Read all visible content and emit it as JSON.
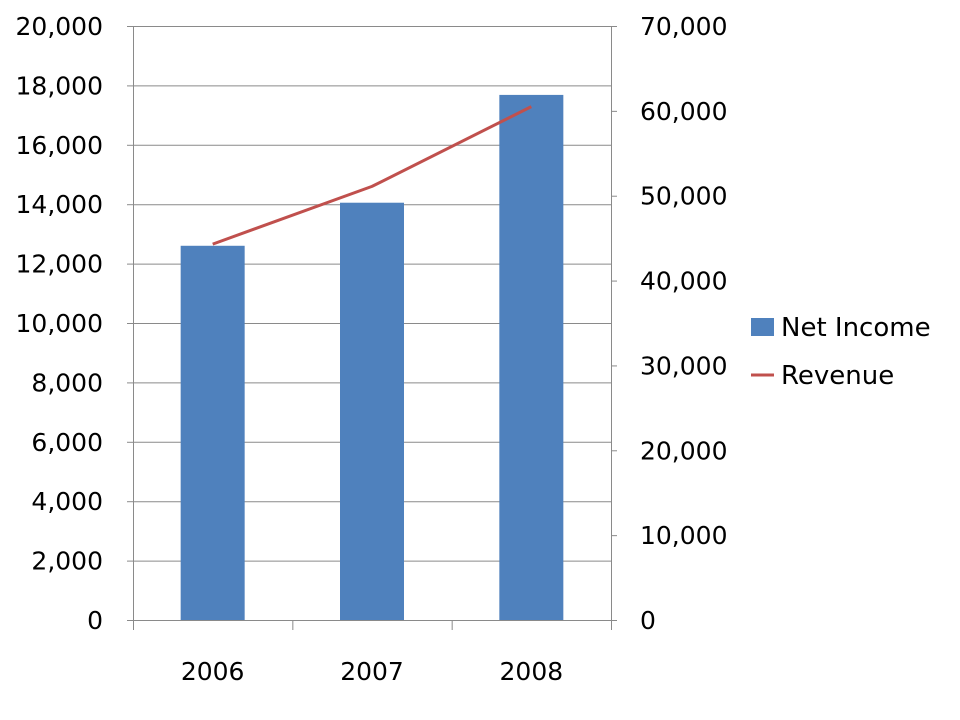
{
  "chart_data": {
    "type": "bar",
    "categories": [
      "2006",
      "2007",
      "2008"
    ],
    "series": [
      {
        "name": "Net Income",
        "type": "bar",
        "axis": "left",
        "color": "#4F81BD",
        "values": [
          12600,
          14050,
          17680
        ]
      },
      {
        "name": "Revenue",
        "type": "line",
        "axis": "right",
        "color": "#C0504D",
        "values": [
          44300,
          51100,
          60500
        ]
      }
    ],
    "y_left": {
      "min": 0,
      "max": 20000,
      "step": 2000,
      "tick_labels": [
        "0",
        "2,000",
        "4,000",
        "6,000",
        "8,000",
        "10,000",
        "12,000",
        "14,000",
        "16,000",
        "18,000",
        "20,000"
      ]
    },
    "y_right": {
      "min": 0,
      "max": 70000,
      "step": 10000,
      "tick_labels": [
        "0",
        "10,000",
        "20,000",
        "30,000",
        "40,000",
        "50,000",
        "60,000",
        "70,000"
      ]
    },
    "grid": true,
    "legend_position": "right",
    "title": "",
    "xlabel": "",
    "ylabel": ""
  }
}
